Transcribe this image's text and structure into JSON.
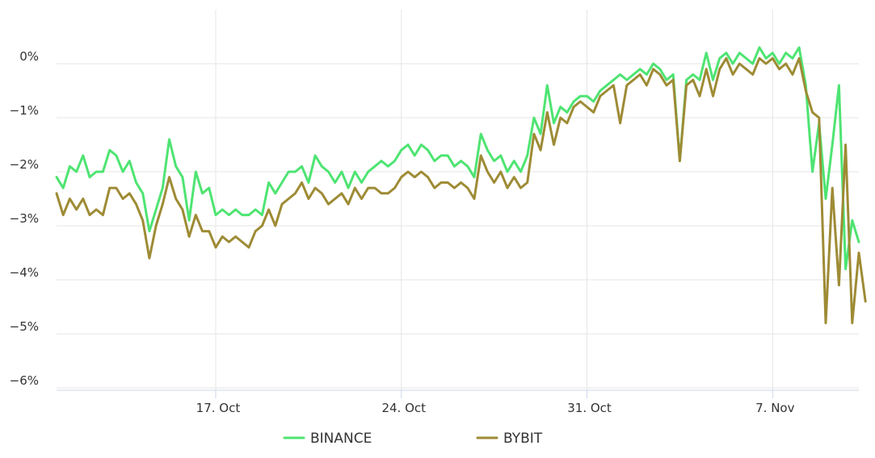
{
  "chart_data": {
    "type": "line",
    "title": "",
    "xlabel": "",
    "ylabel": "",
    "x_range": [
      "2023-10-11",
      "2023-11-10"
    ],
    "ylim": [
      -6.2,
      1.0
    ],
    "y_ticks": [
      0,
      -1,
      -2,
      -3,
      -4,
      -5,
      -6
    ],
    "y_tick_labels": [
      "0%",
      "−1%",
      "−2%",
      "−3%",
      "−4%",
      "−5%",
      "−6%"
    ],
    "x_ticks": [
      "2023-10-17",
      "2023-10-24",
      "2023-10-31",
      "2023-11-07"
    ],
    "x_tick_labels": [
      "17. Oct",
      "24. Oct",
      "31. Oct",
      "7. Nov"
    ],
    "grid": true,
    "legend_position": "bottom",
    "series": [
      {
        "name": "BINANCE",
        "color": "#4ee472",
        "points": [
          [
            "2023-10-11 00:00",
            -2.1
          ],
          [
            "2023-10-11 06:00",
            -2.3
          ],
          [
            "2023-10-11 12:00",
            -1.9
          ],
          [
            "2023-10-11 18:00",
            -2.0
          ],
          [
            "2023-10-12 00:00",
            -1.7
          ],
          [
            "2023-10-12 06:00",
            -2.1
          ],
          [
            "2023-10-12 12:00",
            -2.0
          ],
          [
            "2023-10-12 18:00",
            -2.0
          ],
          [
            "2023-10-13 00:00",
            -1.6
          ],
          [
            "2023-10-13 06:00",
            -1.7
          ],
          [
            "2023-10-13 12:00",
            -2.0
          ],
          [
            "2023-10-13 18:00",
            -1.8
          ],
          [
            "2023-10-14 00:00",
            -2.2
          ],
          [
            "2023-10-14 06:00",
            -2.4
          ],
          [
            "2023-10-14 12:00",
            -3.1
          ],
          [
            "2023-10-14 18:00",
            -2.7
          ],
          [
            "2023-10-15 00:00",
            -2.3
          ],
          [
            "2023-10-15 06:00",
            -1.4
          ],
          [
            "2023-10-15 12:00",
            -1.9
          ],
          [
            "2023-10-15 18:00",
            -2.1
          ],
          [
            "2023-10-16 00:00",
            -2.9
          ],
          [
            "2023-10-16 06:00",
            -2.0
          ],
          [
            "2023-10-16 12:00",
            -2.4
          ],
          [
            "2023-10-16 18:00",
            -2.3
          ],
          [
            "2023-10-17 00:00",
            -2.8
          ],
          [
            "2023-10-17 06:00",
            -2.7
          ],
          [
            "2023-10-17 12:00",
            -2.8
          ],
          [
            "2023-10-17 18:00",
            -2.7
          ],
          [
            "2023-10-18 00:00",
            -2.8
          ],
          [
            "2023-10-18 06:00",
            -2.8
          ],
          [
            "2023-10-18 12:00",
            -2.7
          ],
          [
            "2023-10-18 18:00",
            -2.8
          ],
          [
            "2023-10-19 00:00",
            -2.2
          ],
          [
            "2023-10-19 06:00",
            -2.4
          ],
          [
            "2023-10-19 12:00",
            -2.2
          ],
          [
            "2023-10-19 18:00",
            -2.0
          ],
          [
            "2023-10-20 00:00",
            -2.0
          ],
          [
            "2023-10-20 06:00",
            -1.9
          ],
          [
            "2023-10-20 12:00",
            -2.2
          ],
          [
            "2023-10-20 18:00",
            -1.7
          ],
          [
            "2023-10-21 00:00",
            -1.9
          ],
          [
            "2023-10-21 06:00",
            -2.0
          ],
          [
            "2023-10-21 12:00",
            -2.2
          ],
          [
            "2023-10-21 18:00",
            -2.0
          ],
          [
            "2023-10-22 00:00",
            -2.3
          ],
          [
            "2023-10-22 06:00",
            -2.0
          ],
          [
            "2023-10-22 12:00",
            -2.2
          ],
          [
            "2023-10-22 18:00",
            -2.0
          ],
          [
            "2023-10-23 00:00",
            -1.9
          ],
          [
            "2023-10-23 06:00",
            -1.8
          ],
          [
            "2023-10-23 12:00",
            -1.9
          ],
          [
            "2023-10-23 18:00",
            -1.8
          ],
          [
            "2023-10-24 00:00",
            -1.6
          ],
          [
            "2023-10-24 06:00",
            -1.5
          ],
          [
            "2023-10-24 12:00",
            -1.7
          ],
          [
            "2023-10-24 18:00",
            -1.5
          ],
          [
            "2023-10-25 00:00",
            -1.6
          ],
          [
            "2023-10-25 06:00",
            -1.8
          ],
          [
            "2023-10-25 12:00",
            -1.7
          ],
          [
            "2023-10-25 18:00",
            -1.7
          ],
          [
            "2023-10-26 00:00",
            -1.9
          ],
          [
            "2023-10-26 06:00",
            -1.8
          ],
          [
            "2023-10-26 12:00",
            -1.9
          ],
          [
            "2023-10-26 18:00",
            -2.1
          ],
          [
            "2023-10-27 00:00",
            -1.3
          ],
          [
            "2023-10-27 06:00",
            -1.6
          ],
          [
            "2023-10-27 12:00",
            -1.8
          ],
          [
            "2023-10-27 18:00",
            -1.7
          ],
          [
            "2023-10-28 00:00",
            -2.0
          ],
          [
            "2023-10-28 06:00",
            -1.8
          ],
          [
            "2023-10-28 12:00",
            -2.0
          ],
          [
            "2023-10-28 18:00",
            -1.7
          ],
          [
            "2023-10-29 00:00",
            -1.0
          ],
          [
            "2023-10-29 06:00",
            -1.3
          ],
          [
            "2023-10-29 12:00",
            -0.4
          ],
          [
            "2023-10-29 18:00",
            -1.1
          ],
          [
            "2023-10-30 00:00",
            -0.8
          ],
          [
            "2023-10-30 06:00",
            -0.9
          ],
          [
            "2023-10-30 12:00",
            -0.7
          ],
          [
            "2023-10-30 18:00",
            -0.6
          ],
          [
            "2023-10-31 00:00",
            -0.6
          ],
          [
            "2023-10-31 06:00",
            -0.7
          ],
          [
            "2023-10-31 12:00",
            -0.5
          ],
          [
            "2023-10-31 18:00",
            -0.4
          ],
          [
            "2023-11-01 00:00",
            -0.3
          ],
          [
            "2023-11-01 06:00",
            -0.2
          ],
          [
            "2023-11-01 12:00",
            -0.3
          ],
          [
            "2023-11-01 18:00",
            -0.2
          ],
          [
            "2023-11-02 00:00",
            -0.1
          ],
          [
            "2023-11-02 06:00",
            -0.2
          ],
          [
            "2023-11-02 12:00",
            -0.0
          ],
          [
            "2023-11-02 18:00",
            -0.1
          ],
          [
            "2023-11-03 00:00",
            -0.3
          ],
          [
            "2023-11-03 06:00",
            -0.2
          ],
          [
            "2023-11-03 12:00",
            -1.8
          ],
          [
            "2023-11-03 18:00",
            -0.3
          ],
          [
            "2023-11-04 00:00",
            -0.2
          ],
          [
            "2023-11-04 06:00",
            -0.3
          ],
          [
            "2023-11-04 12:00",
            0.2
          ],
          [
            "2023-11-04 18:00",
            -0.3
          ],
          [
            "2023-11-05 00:00",
            0.1
          ],
          [
            "2023-11-05 06:00",
            0.2
          ],
          [
            "2023-11-05 12:00",
            0.0
          ],
          [
            "2023-11-05 18:00",
            0.2
          ],
          [
            "2023-11-06 00:00",
            0.1
          ],
          [
            "2023-11-06 06:00",
            0.0
          ],
          [
            "2023-11-06 12:00",
            0.3
          ],
          [
            "2023-11-06 18:00",
            0.1
          ],
          [
            "2023-11-07 00:00",
            0.2
          ],
          [
            "2023-11-07 06:00",
            0.0
          ],
          [
            "2023-11-07 12:00",
            0.2
          ],
          [
            "2023-11-07 18:00",
            0.1
          ],
          [
            "2023-11-08 00:00",
            0.3
          ],
          [
            "2023-11-08 06:00",
            -0.4
          ],
          [
            "2023-11-08 12:00",
            -2.0
          ],
          [
            "2023-11-08 18:00",
            -1.1
          ],
          [
            "2023-11-09 00:00",
            -2.5
          ],
          [
            "2023-11-09 06:00",
            -1.5
          ],
          [
            "2023-11-09 12:00",
            -0.4
          ],
          [
            "2023-11-09 18:00",
            -3.8
          ],
          [
            "2023-11-10 00:00",
            -2.9
          ],
          [
            "2023-11-10 06:00",
            -3.3
          ]
        ]
      },
      {
        "name": "BYBIT",
        "color": "#9e8b35",
        "points": [
          [
            "2023-10-11 00:00",
            -2.4
          ],
          [
            "2023-10-11 06:00",
            -2.8
          ],
          [
            "2023-10-11 12:00",
            -2.5
          ],
          [
            "2023-10-11 18:00",
            -2.7
          ],
          [
            "2023-10-12 00:00",
            -2.5
          ],
          [
            "2023-10-12 06:00",
            -2.8
          ],
          [
            "2023-10-12 12:00",
            -2.7
          ],
          [
            "2023-10-12 18:00",
            -2.8
          ],
          [
            "2023-10-13 00:00",
            -2.3
          ],
          [
            "2023-10-13 06:00",
            -2.3
          ],
          [
            "2023-10-13 12:00",
            -2.5
          ],
          [
            "2023-10-13 18:00",
            -2.4
          ],
          [
            "2023-10-14 00:00",
            -2.6
          ],
          [
            "2023-10-14 06:00",
            -2.9
          ],
          [
            "2023-10-14 12:00",
            -3.6
          ],
          [
            "2023-10-14 18:00",
            -3.0
          ],
          [
            "2023-10-15 00:00",
            -2.6
          ],
          [
            "2023-10-15 06:00",
            -2.1
          ],
          [
            "2023-10-15 12:00",
            -2.5
          ],
          [
            "2023-10-15 18:00",
            -2.7
          ],
          [
            "2023-10-16 00:00",
            -3.2
          ],
          [
            "2023-10-16 06:00",
            -2.8
          ],
          [
            "2023-10-16 12:00",
            -3.1
          ],
          [
            "2023-10-16 18:00",
            -3.1
          ],
          [
            "2023-10-17 00:00",
            -3.4
          ],
          [
            "2023-10-17 06:00",
            -3.2
          ],
          [
            "2023-10-17 12:00",
            -3.3
          ],
          [
            "2023-10-17 18:00",
            -3.2
          ],
          [
            "2023-10-18 00:00",
            -3.3
          ],
          [
            "2023-10-18 06:00",
            -3.4
          ],
          [
            "2023-10-18 12:00",
            -3.1
          ],
          [
            "2023-10-18 18:00",
            -3.0
          ],
          [
            "2023-10-19 00:00",
            -2.7
          ],
          [
            "2023-10-19 06:00",
            -3.0
          ],
          [
            "2023-10-19 12:00",
            -2.6
          ],
          [
            "2023-10-19 18:00",
            -2.5
          ],
          [
            "2023-10-20 00:00",
            -2.4
          ],
          [
            "2023-10-20 06:00",
            -2.2
          ],
          [
            "2023-10-20 12:00",
            -2.5
          ],
          [
            "2023-10-20 18:00",
            -2.3
          ],
          [
            "2023-10-21 00:00",
            -2.4
          ],
          [
            "2023-10-21 06:00",
            -2.6
          ],
          [
            "2023-10-21 12:00",
            -2.5
          ],
          [
            "2023-10-21 18:00",
            -2.4
          ],
          [
            "2023-10-22 00:00",
            -2.6
          ],
          [
            "2023-10-22 06:00",
            -2.3
          ],
          [
            "2023-10-22 12:00",
            -2.5
          ],
          [
            "2023-10-22 18:00",
            -2.3
          ],
          [
            "2023-10-23 00:00",
            -2.3
          ],
          [
            "2023-10-23 06:00",
            -2.4
          ],
          [
            "2023-10-23 12:00",
            -2.4
          ],
          [
            "2023-10-23 18:00",
            -2.3
          ],
          [
            "2023-10-24 00:00",
            -2.1
          ],
          [
            "2023-10-24 06:00",
            -2.0
          ],
          [
            "2023-10-24 12:00",
            -2.1
          ],
          [
            "2023-10-24 18:00",
            -2.0
          ],
          [
            "2023-10-25 00:00",
            -2.1
          ],
          [
            "2023-10-25 06:00",
            -2.3
          ],
          [
            "2023-10-25 12:00",
            -2.2
          ],
          [
            "2023-10-25 18:00",
            -2.2
          ],
          [
            "2023-10-26 00:00",
            -2.3
          ],
          [
            "2023-10-26 06:00",
            -2.2
          ],
          [
            "2023-10-26 12:00",
            -2.3
          ],
          [
            "2023-10-26 18:00",
            -2.5
          ],
          [
            "2023-10-27 00:00",
            -1.7
          ],
          [
            "2023-10-27 06:00",
            -2.0
          ],
          [
            "2023-10-27 12:00",
            -2.2
          ],
          [
            "2023-10-27 18:00",
            -2.0
          ],
          [
            "2023-10-28 00:00",
            -2.3
          ],
          [
            "2023-10-28 06:00",
            -2.1
          ],
          [
            "2023-10-28 12:00",
            -2.3
          ],
          [
            "2023-10-28 18:00",
            -2.2
          ],
          [
            "2023-10-29 00:00",
            -1.3
          ],
          [
            "2023-10-29 06:00",
            -1.6
          ],
          [
            "2023-10-29 12:00",
            -0.9
          ],
          [
            "2023-10-29 18:00",
            -1.5
          ],
          [
            "2023-10-30 00:00",
            -1.0
          ],
          [
            "2023-10-30 06:00",
            -1.1
          ],
          [
            "2023-10-30 12:00",
            -0.8
          ],
          [
            "2023-10-30 18:00",
            -0.7
          ],
          [
            "2023-10-31 00:00",
            -0.8
          ],
          [
            "2023-10-31 06:00",
            -0.9
          ],
          [
            "2023-10-31 12:00",
            -0.6
          ],
          [
            "2023-10-31 18:00",
            -0.5
          ],
          [
            "2023-11-01 00:00",
            -0.4
          ],
          [
            "2023-11-01 06:00",
            -1.1
          ],
          [
            "2023-11-01 12:00",
            -0.4
          ],
          [
            "2023-11-01 18:00",
            -0.3
          ],
          [
            "2023-11-02 00:00",
            -0.2
          ],
          [
            "2023-11-02 06:00",
            -0.4
          ],
          [
            "2023-11-02 12:00",
            -0.1
          ],
          [
            "2023-11-02 18:00",
            -0.2
          ],
          [
            "2023-11-03 00:00",
            -0.4
          ],
          [
            "2023-11-03 06:00",
            -0.3
          ],
          [
            "2023-11-03 12:00",
            -1.8
          ],
          [
            "2023-11-03 18:00",
            -0.4
          ],
          [
            "2023-11-04 00:00",
            -0.3
          ],
          [
            "2023-11-04 06:00",
            -0.6
          ],
          [
            "2023-11-04 12:00",
            -0.1
          ],
          [
            "2023-11-04 18:00",
            -0.6
          ],
          [
            "2023-11-05 00:00",
            -0.1
          ],
          [
            "2023-11-05 06:00",
            0.1
          ],
          [
            "2023-11-05 12:00",
            -0.2
          ],
          [
            "2023-11-05 18:00",
            0.0
          ],
          [
            "2023-11-06 00:00",
            -0.1
          ],
          [
            "2023-11-06 06:00",
            -0.2
          ],
          [
            "2023-11-06 12:00",
            0.1
          ],
          [
            "2023-11-06 18:00",
            0.0
          ],
          [
            "2023-11-07 00:00",
            0.1
          ],
          [
            "2023-11-07 06:00",
            -0.1
          ],
          [
            "2023-11-07 12:00",
            0.0
          ],
          [
            "2023-11-07 18:00",
            -0.2
          ],
          [
            "2023-11-08 00:00",
            0.1
          ],
          [
            "2023-11-08 06:00",
            -0.5
          ],
          [
            "2023-11-08 12:00",
            -0.9
          ],
          [
            "2023-11-08 18:00",
            -1.0
          ],
          [
            "2023-11-09 00:00",
            -4.8
          ],
          [
            "2023-11-09 06:00",
            -2.3
          ],
          [
            "2023-11-09 12:00",
            -4.1
          ],
          [
            "2023-11-09 18:00",
            -1.5
          ],
          [
            "2023-11-10 00:00",
            -4.8
          ],
          [
            "2023-11-10 06:00",
            -3.5
          ],
          [
            "2023-11-10 12:00",
            -4.4
          ]
        ]
      }
    ]
  }
}
